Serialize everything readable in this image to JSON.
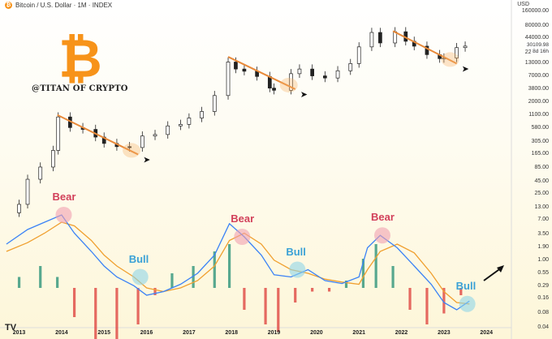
{
  "header": {
    "title": "Bitcoin / U.S. Dollar · 1M · INDEX",
    "currency": "USD"
  },
  "logo": {
    "symbol": "₿",
    "handle": "@TITAN OF CRYPTO"
  },
  "footer_logo": "TV",
  "colors": {
    "bitcoin": "#f7931a",
    "bear": "#d2405a",
    "bull": "#3aa1d6",
    "macd": "#3b82f6",
    "signal": "#f0a030"
  },
  "price_box": {
    "price": "30109.98",
    "sub": "8d 16h"
  },
  "chart_data": [
    {
      "type": "candlestick",
      "title": "Bitcoin / U.S. Dollar · 1M · INDEX",
      "y_scale": "log",
      "ylim": [
        0.04,
        160000
      ],
      "x_ticks": [
        "2013",
        "2014",
        "2015",
        "2016",
        "2017",
        "2018",
        "2019",
        "2020",
        "2021",
        "2022",
        "2023",
        "2024"
      ],
      "y_ticks": [
        "160000.00",
        "80000.00",
        "44000.00",
        "22000.00",
        "13000.00",
        "7000.00",
        "3800.00",
        "2000.00",
        "1100.00",
        "580.00",
        "305.00",
        "165.00",
        "85.00",
        "45.00",
        "25.00",
        "13.00",
        "7.00",
        "3.50",
        "1.90",
        "1.00",
        "0.55",
        "0.29",
        "0.16",
        "0.08",
        "0.04"
      ],
      "series": [
        {
          "x": [
            2012.7,
            2013.0,
            2013.2,
            2013.5,
            2013.8,
            2013.92,
            2014.2,
            2014.5,
            2014.8,
            2015.0,
            2015.3,
            2015.6,
            2015.9,
            2016.2,
            2016.5,
            2016.8,
            2017.0,
            2017.3,
            2017.6,
            2017.92,
            2018.1,
            2018.3,
            2018.6,
            2018.9,
            2019.0,
            2019.4,
            2019.6,
            2019.9,
            2020.2,
            2020.5,
            2020.8,
            2021.0,
            2021.3,
            2021.5,
            2021.85,
            2022.1,
            2022.3,
            2022.6,
            2022.9,
            2023.0,
            2023.3,
            2023.5
          ],
          "y": [
            10,
            15,
            50,
            90,
            200,
            1000,
            600,
            550,
            380,
            280,
            240,
            230,
            400,
            430,
            650,
            700,
            950,
            1300,
            2800,
            14000,
            10000,
            9000,
            7000,
            4000,
            3600,
            8000,
            10000,
            7200,
            6500,
            9200,
            13000,
            29000,
            58000,
            35000,
            60000,
            38000,
            30000,
            20000,
            16500,
            17000,
            28000,
            30100
          ]
        }
      ],
      "trendlines": [
        {
          "name": "",
          "points": [
            [
              2013.9,
              1100
            ],
            [
              2015.8,
              165
            ]
          ]
        },
        {
          "name": "",
          "points": [
            [
              2017.92,
              18000
            ],
            [
              2019.5,
              3800
            ]
          ]
        },
        {
          "name": "",
          "points": [
            [
              2021.8,
              62000
            ],
            [
              2023.3,
              13000
            ]
          ]
        }
      ]
    },
    {
      "type": "line",
      "y_ticks": [
        "0.55",
        "0.29",
        "0.16",
        "0.08"
      ],
      "series": [
        {
          "name": "",
          "x": [
            2012.7,
            2013.2,
            2013.6,
            2014.0,
            2014.3,
            2014.7,
            2015.0,
            2015.3,
            2015.7,
            2016.0,
            2016.4,
            2016.8,
            2017.2,
            2017.6,
            2017.95,
            2018.3,
            2018.7,
            2019.0,
            2019.4,
            2019.8,
            2020.2,
            2020.6,
            2021.0,
            2021.2,
            2021.5,
            2021.9,
            2022.3,
            2022.7,
            2023.0,
            2023.3,
            2023.6
          ],
          "y": [
            0.6,
            0.8,
            0.9,
            1.0,
            0.75,
            0.5,
            0.3,
            0.15,
            0.03,
            -0.1,
            -0.05,
            0.05,
            0.2,
            0.45,
            0.88,
            0.7,
            0.45,
            0.18,
            0.15,
            0.25,
            0.1,
            0.06,
            0.15,
            0.55,
            0.72,
            0.55,
            0.3,
            0.05,
            -0.2,
            -0.3,
            -0.18
          ]
        },
        {
          "name": "",
          "x": [
            2012.7,
            2013.2,
            2013.6,
            2014.0,
            2014.3,
            2014.7,
            2015.0,
            2015.3,
            2015.7,
            2016.0,
            2016.4,
            2016.8,
            2017.2,
            2017.6,
            2017.95,
            2018.3,
            2018.7,
            2019.0,
            2019.4,
            2019.8,
            2020.2,
            2020.6,
            2021.0,
            2021.2,
            2021.5,
            2021.9,
            2022.3,
            2022.7,
            2023.0,
            2023.3,
            2023.6
          ],
          "y": [
            0.5,
            0.62,
            0.75,
            0.9,
            0.85,
            0.65,
            0.45,
            0.3,
            0.15,
            0.0,
            -0.05,
            0.0,
            0.1,
            0.3,
            0.65,
            0.75,
            0.6,
            0.38,
            0.25,
            0.2,
            0.12,
            0.08,
            0.05,
            0.25,
            0.5,
            0.6,
            0.48,
            0.2,
            -0.05,
            -0.2,
            -0.22
          ]
        }
      ],
      "histogram": [
        {
          "x": 2013.0,
          "value": 0.15
        },
        {
          "x": 2013.5,
          "value": 0.3
        },
        {
          "x": 2013.9,
          "value": 0.15
        },
        {
          "x": 2014.3,
          "value": -0.4
        },
        {
          "x": 2014.8,
          "value": -0.7
        },
        {
          "x": 2015.3,
          "value": -0.8
        },
        {
          "x": 2015.8,
          "value": -0.5
        },
        {
          "x": 2016.2,
          "value": -0.1
        },
        {
          "x": 2016.6,
          "value": 0.2
        },
        {
          "x": 2017.1,
          "value": 0.3
        },
        {
          "x": 2017.6,
          "value": 0.5
        },
        {
          "x": 2017.95,
          "value": 0.6
        },
        {
          "x": 2018.3,
          "value": -0.3
        },
        {
          "x": 2018.8,
          "value": -0.5
        },
        {
          "x": 2019.1,
          "value": -0.6
        },
        {
          "x": 2019.5,
          "value": -0.2
        },
        {
          "x": 2019.9,
          "value": -0.05
        },
        {
          "x": 2020.3,
          "value": -0.05
        },
        {
          "x": 2020.7,
          "value": 0.1
        },
        {
          "x": 2021.1,
          "value": 0.4
        },
        {
          "x": 2021.4,
          "value": 0.6
        },
        {
          "x": 2021.8,
          "value": 0.3
        },
        {
          "x": 2022.2,
          "value": -0.3
        },
        {
          "x": 2022.6,
          "value": -0.5
        },
        {
          "x": 2023.0,
          "value": -0.35
        },
        {
          "x": 2023.4,
          "value": -0.1
        }
      ]
    }
  ],
  "annotations": [
    {
      "label": "Bear",
      "kind": "bear",
      "x": 2014.05
    },
    {
      "label": "Bull",
      "kind": "bull",
      "x": 2015.85
    },
    {
      "label": "Bear",
      "kind": "bear",
      "x": 2018.25
    },
    {
      "label": "Bull",
      "kind": "bull",
      "x": 2019.55
    },
    {
      "label": "Bear",
      "kind": "bear",
      "x": 2021.55
    },
    {
      "label": "Bull",
      "kind": "bull",
      "x": 2023.55
    }
  ]
}
